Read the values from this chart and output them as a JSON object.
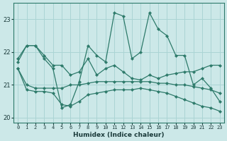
{
  "xlabel": "Humidex (Indice chaleur)",
  "bg_color": "#cce8e8",
  "line_color": "#2d7a6a",
  "grid_color": "#aad4d4",
  "hours": [
    0,
    1,
    2,
    3,
    4,
    5,
    6,
    7,
    8,
    9,
    10,
    11,
    12,
    13,
    14,
    15,
    16,
    17,
    18,
    19,
    20,
    21,
    22,
    23
  ],
  "line1": [
    21.7,
    22.2,
    22.2,
    21.8,
    21.5,
    20.3,
    20.4,
    21.1,
    22.2,
    21.9,
    21.7,
    23.2,
    23.1,
    21.8,
    22.0,
    23.2,
    22.7,
    22.5,
    21.9,
    21.9,
    21.0,
    21.2,
    20.9,
    20.5
  ],
  "line2": [
    21.8,
    22.2,
    22.2,
    21.9,
    21.6,
    21.6,
    21.3,
    21.4,
    21.8,
    21.3,
    21.5,
    21.6,
    21.4,
    21.2,
    21.15,
    21.3,
    21.2,
    21.3,
    21.35,
    21.4,
    21.4,
    21.5,
    21.6,
    21.6
  ],
  "line3": [
    21.5,
    21.0,
    20.9,
    20.9,
    20.9,
    20.9,
    21.0,
    21.0,
    21.05,
    21.1,
    21.1,
    21.1,
    21.1,
    21.1,
    21.1,
    21.1,
    21.05,
    21.05,
    21.0,
    21.0,
    20.95,
    20.9,
    20.85,
    20.75
  ],
  "line4": [
    21.5,
    20.85,
    20.8,
    20.8,
    20.75,
    20.4,
    20.35,
    20.5,
    20.7,
    20.75,
    20.8,
    20.85,
    20.85,
    20.85,
    20.9,
    20.85,
    20.8,
    20.75,
    20.65,
    20.55,
    20.45,
    20.35,
    20.3,
    20.2
  ],
  "ylim": [
    19.85,
    23.5
  ],
  "yticks": [
    20,
    21,
    22,
    23
  ]
}
